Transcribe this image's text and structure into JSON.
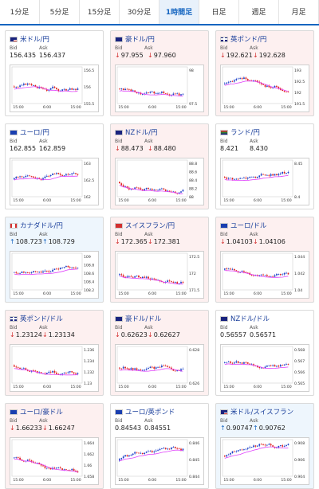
{
  "tabs": [
    {
      "label": "1分足",
      "active": false
    },
    {
      "label": "5分足",
      "active": false
    },
    {
      "label": "15分足",
      "active": false
    },
    {
      "label": "30分足",
      "active": false
    },
    {
      "label": "1時間足",
      "active": true
    },
    {
      "label": "日足",
      "active": false
    },
    {
      "label": "週足",
      "active": false
    },
    {
      "label": "月足",
      "active": false
    }
  ],
  "labels": {
    "bid": "Bid",
    "ask": "Ask"
  },
  "colors": {
    "up_candle": "#1a3fc8",
    "down_candle": "#e0201c",
    "ma_line": "#e040fb",
    "up_arrow": "#1565c0",
    "down_arrow": "#d32f2f"
  },
  "cards": [
    {
      "pair": "米ドル/円",
      "flag": "us-flag",
      "bid": "156.435",
      "ask": "156.437",
      "dir": "flat",
      "yticks": [
        "156.5",
        "156",
        "155.5"
      ],
      "xticks": [
        "15:00",
        "6:00",
        "15:00"
      ]
    },
    {
      "pair": "豪ドル/円",
      "flag": "au-flag",
      "bid": "97.955",
      "ask": "97.960",
      "dir": "down",
      "yticks": [
        "98",
        "97.5"
      ],
      "xticks": [
        "15:00",
        "6:00",
        "15:00"
      ]
    },
    {
      "pair": "英ポンド/円",
      "flag": "gb-flag",
      "bid": "192.621",
      "ask": "192.628",
      "dir": "down",
      "yticks": [
        "193",
        "192.5",
        "192",
        "191.5"
      ],
      "xticks": [
        "15:00",
        "6:00",
        "15:00"
      ]
    },
    {
      "pair": "ユーロ/円",
      "flag": "eu-flag",
      "bid": "162.855",
      "ask": "162.859",
      "dir": "flat",
      "yticks": [
        "163",
        "162.5",
        "162"
      ],
      "xticks": [
        "15:00",
        "6:00",
        "15:00"
      ]
    },
    {
      "pair": "NZドル/円",
      "flag": "nz-flag",
      "bid": "88.473",
      "ask": "88.480",
      "dir": "down",
      "yticks": [
        "88.8",
        "88.6",
        "88.4",
        "88.2",
        "88"
      ],
      "xticks": [
        "15:00",
        "6:00",
        "15:00"
      ]
    },
    {
      "pair": "ランド/円",
      "flag": "za-flag",
      "bid": "8.421",
      "ask": "8.430",
      "dir": "flat",
      "yticks": [
        "8.45",
        "8.4"
      ],
      "xticks": [
        "15:00",
        "6:00",
        "15:00"
      ]
    },
    {
      "pair": "カナダドル/円",
      "flag": "ca-flag",
      "bid": "108.723",
      "ask": "108.729",
      "dir": "up",
      "yticks": [
        "109",
        "108.8",
        "108.6",
        "108.4",
        "108.2"
      ],
      "xticks": [
        "15:00",
        "6:00",
        "15:00"
      ]
    },
    {
      "pair": "スイスフラン/円",
      "flag": "ch-flag",
      "bid": "172.365",
      "ask": "172.381",
      "dir": "down",
      "yticks": [
        "172.5",
        "172",
        "171.5"
      ],
      "xticks": [
        "15:00",
        "6:00",
        "15:00"
      ]
    },
    {
      "pair": "ユーロ/ドル",
      "flag": "eu-flag",
      "bid": "1.04103",
      "ask": "1.04106",
      "dir": "down",
      "yticks": [
        "1.044",
        "1.042",
        "1.04"
      ],
      "xticks": [
        "15:00",
        "6:00",
        "15:00"
      ]
    },
    {
      "pair": "英ポンド/ドル",
      "flag": "gb-flag",
      "bid": "1.23124",
      "ask": "1.23134",
      "dir": "down",
      "yticks": [
        "1.236",
        "1.234",
        "1.232",
        "1.23"
      ],
      "xticks": [
        "15:00",
        "6:00",
        "15:00"
      ]
    },
    {
      "pair": "豪ドル/ドル",
      "flag": "au-flag",
      "bid": "0.62623",
      "ask": "0.62627",
      "dir": "down",
      "yticks": [
        "0.628",
        "0.626"
      ],
      "xticks": [
        "15:00",
        "6:00",
        "15:00"
      ]
    },
    {
      "pair": "NZドル/ドル",
      "flag": "nz-flag",
      "bid": "0.56557",
      "ask": "0.56571",
      "dir": "flat",
      "yticks": [
        "0.568",
        "0.567",
        "0.566",
        "0.565"
      ],
      "xticks": [
        "15:00",
        "6:00",
        "15:00"
      ]
    },
    {
      "pair": "ユーロ/豪ドル",
      "flag": "eu-flag",
      "bid": "1.66233",
      "ask": "1.66247",
      "dir": "down",
      "yticks": [
        "1.664",
        "1.662",
        "1.66",
        "1.658"
      ],
      "xticks": [
        "15:00",
        "6:00",
        "15:00"
      ]
    },
    {
      "pair": "ユーロ/英ポンド",
      "flag": "eu-flag",
      "bid": "0.84543",
      "ask": "0.84551",
      "dir": "flat",
      "yticks": [
        "0.846",
        "0.845",
        "0.844"
      ],
      "xticks": [
        "15:00",
        "6:00",
        "15:00"
      ]
    },
    {
      "pair": "米ドル/スイスフラン",
      "flag": "us-flag",
      "bid": "0.90747",
      "ask": "0.90762",
      "dir": "up",
      "yticks": [
        "0.908",
        "0.906",
        "0.904"
      ],
      "xticks": [
        "15:00",
        "6:00",
        "15:00"
      ]
    }
  ]
}
